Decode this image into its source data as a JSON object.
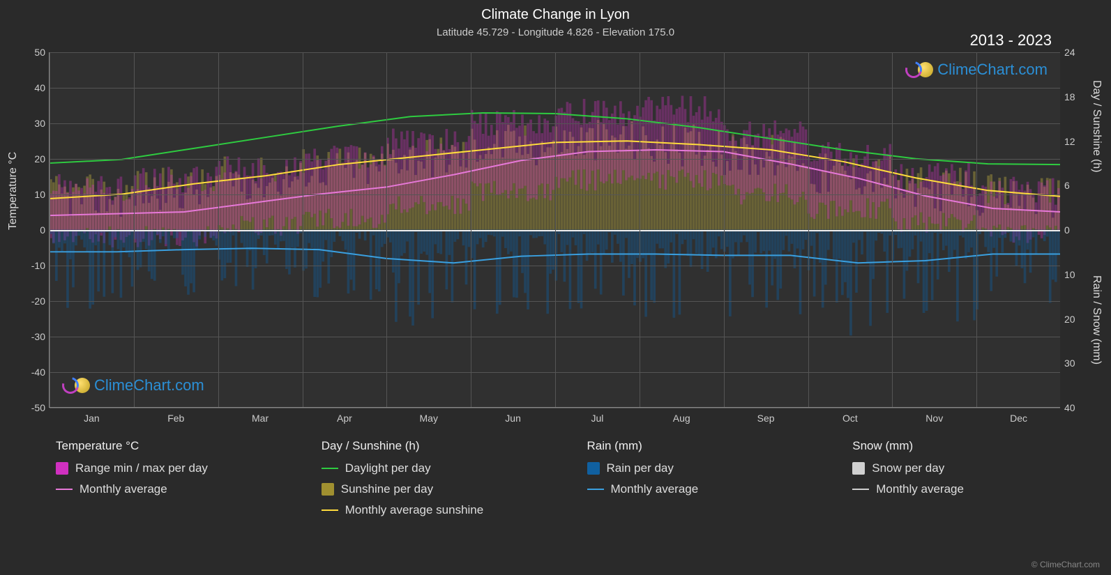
{
  "chart": {
    "title": "Climate Change in Lyon",
    "subtitle": "Latitude 45.729 - Longitude 4.826 - Elevation 175.0",
    "year_range": "2013 - 2023",
    "watermark_text": "ClimeChart.com",
    "copyright": "© ClimeChart.com",
    "background_color": "#2a2a2a",
    "plot_background_color": "#303030",
    "grid_color": "#555555",
    "zero_line_color": "#eeeeee",
    "font_color": "#e0e0e0",
    "title_fontsize": 20,
    "subtitle_fontsize": 15,
    "tick_fontsize": 14,
    "axis_label_fontsize": 16,
    "axes": {
      "y_left": {
        "label": "Temperature °C",
        "min": -50,
        "max": 50,
        "ticks": [
          -50,
          -40,
          -30,
          -20,
          -10,
          0,
          10,
          20,
          30,
          40,
          50
        ]
      },
      "y_right_top": {
        "label": "Day / Sunshine (h)",
        "min": 0,
        "max": 24,
        "ticks": [
          0,
          6,
          12,
          18,
          24
        ]
      },
      "y_right_bottom": {
        "label": "Rain / Snow (mm)",
        "min": 0,
        "max": 40,
        "ticks": [
          0,
          10,
          20,
          30,
          40
        ]
      },
      "x": {
        "labels": [
          "Jan",
          "Feb",
          "Mar",
          "Apr",
          "May",
          "Jun",
          "Jul",
          "Aug",
          "Sep",
          "Oct",
          "Nov",
          "Dec"
        ]
      }
    },
    "series": {
      "daylight_line": {
        "color": "#2ecc40",
        "width": 2,
        "points_h": [
          9.0,
          9.5,
          11.0,
          12.5,
          14.0,
          15.3,
          15.8,
          15.7,
          15.0,
          13.8,
          12.3,
          10.8,
          9.6,
          8.9,
          8.8
        ]
      },
      "sunshine_line": {
        "color": "#ffdc3c",
        "width": 2,
        "points_h": [
          4.2,
          4.8,
          6.2,
          7.3,
          8.8,
          9.8,
          10.8,
          11.8,
          12.0,
          11.5,
          10.8,
          9.2,
          7.0,
          5.3,
          4.5
        ]
      },
      "temp_avg_line": {
        "color": "#e678d8",
        "width": 2,
        "points_c": [
          4.0,
          4.5,
          5.0,
          7.5,
          10.0,
          12.0,
          15.5,
          19.5,
          22.0,
          22.5,
          22.0,
          18.5,
          14.5,
          9.5,
          6.0,
          5.0
        ]
      },
      "rain_avg_line": {
        "color": "#3aa0e0",
        "width": 2,
        "points_mm": [
          5.0,
          5.0,
          4.5,
          4.2,
          4.5,
          6.5,
          7.5,
          6.0,
          5.5,
          5.5,
          5.8,
          5.8,
          7.5,
          7.0,
          5.5,
          5.5
        ]
      },
      "temp_bars": {
        "color": "#d030c0",
        "opacity": 0.35,
        "monthly_min_c": [
          -2,
          -2,
          1,
          3,
          7,
          11,
          14,
          14,
          10,
          6,
          2,
          -1
        ],
        "monthly_max_c": [
          12,
          14,
          17,
          20,
          25,
          30,
          33,
          34,
          27,
          21,
          15,
          11
        ]
      },
      "sunshine_bars": {
        "color": "#c0b040",
        "opacity": 0.4,
        "monthly_h": [
          4.5,
          5.5,
          7.0,
          8.5,
          10.0,
          11.5,
          12.0,
          11.5,
          10.0,
          7.5,
          5.5,
          4.5
        ]
      },
      "rain_bars": {
        "color": "#1060a0",
        "opacity": 0.4,
        "monthly_max_mm": [
          18,
          15,
          14,
          16,
          22,
          20,
          18,
          20,
          20,
          25,
          22,
          18
        ]
      }
    },
    "legend": {
      "col1": {
        "title": "Temperature °C",
        "items": [
          {
            "type": "swatch",
            "color": "#d030c0",
            "label": "Range min / max per day"
          },
          {
            "type": "line",
            "color": "#e678d8",
            "label": "Monthly average"
          }
        ]
      },
      "col2": {
        "title": "Day / Sunshine (h)",
        "items": [
          {
            "type": "line",
            "color": "#2ecc40",
            "label": "Daylight per day"
          },
          {
            "type": "swatch",
            "color": "#a09030",
            "label": "Sunshine per day"
          },
          {
            "type": "line",
            "color": "#ffdc3c",
            "label": "Monthly average sunshine"
          }
        ]
      },
      "col3": {
        "title": "Rain (mm)",
        "items": [
          {
            "type": "swatch",
            "color": "#1060a0",
            "label": "Rain per day"
          },
          {
            "type": "line",
            "color": "#3aa0e0",
            "label": "Monthly average"
          }
        ]
      },
      "col4": {
        "title": "Snow (mm)",
        "items": [
          {
            "type": "swatch",
            "color": "#d0d0d0",
            "label": "Snow per day"
          },
          {
            "type": "line",
            "color": "#d0d0d0",
            "label": "Monthly average"
          }
        ]
      }
    }
  }
}
